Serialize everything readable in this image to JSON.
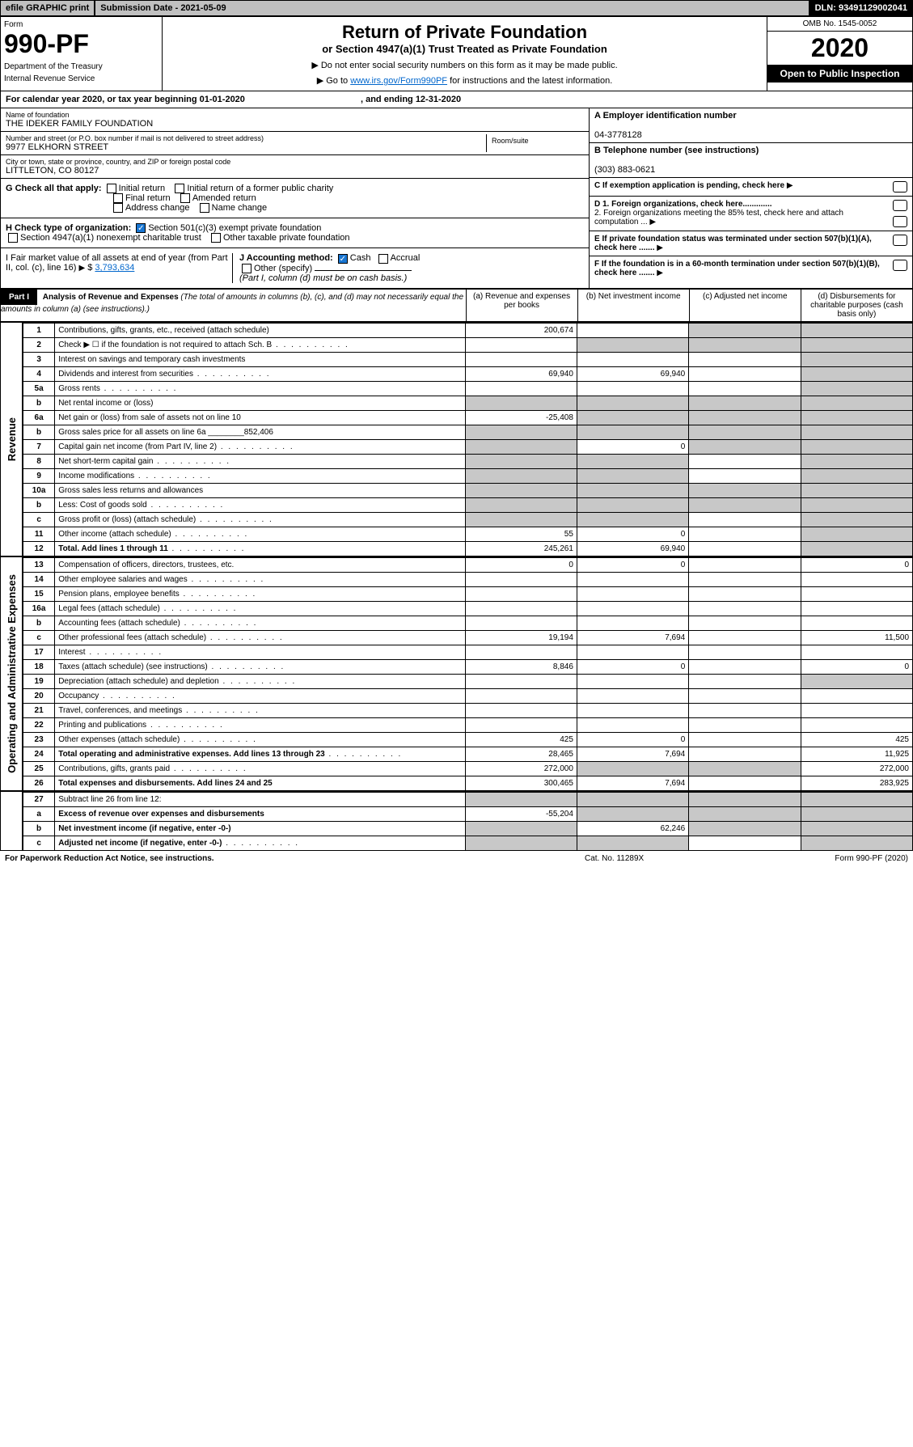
{
  "topbar": {
    "efile": "efile GRAPHIC print",
    "submission": "Submission Date - 2021-05-09",
    "dln": "DLN: 93491129002041"
  },
  "header": {
    "form_word": "Form",
    "form_num": "990-PF",
    "dept": "Department of the Treasury",
    "irs": "Internal Revenue Service",
    "title": "Return of Private Foundation",
    "subtitle": "or Section 4947(a)(1) Trust Treated as Private Foundation",
    "note1": "▶ Do not enter social security numbers on this form as it may be made public.",
    "note2_pre": "▶ Go to ",
    "note2_link": "www.irs.gov/Form990PF",
    "note2_post": " for instructions and the latest information.",
    "omb": "OMB No. 1545-0052",
    "year": "2020",
    "open": "Open to Public Inspection"
  },
  "cal": {
    "text_a": "For calendar year 2020, or tax year beginning 01-01-2020",
    "text_b": ", and ending 12-31-2020"
  },
  "id": {
    "name_label": "Name of foundation",
    "name": "THE IDEKER FAMILY FOUNDATION",
    "addr_label": "Number and street (or P.O. box number if mail is not delivered to street address)",
    "addr": "9977 ELKHORN STREET",
    "room_label": "Room/suite",
    "city_label": "City or town, state or province, country, and ZIP or foreign postal code",
    "city": "LITTLETON, CO  80127",
    "ein_label": "A Employer identification number",
    "ein": "04-3778128",
    "tel_label": "B Telephone number (see instructions)",
    "tel": "(303) 883-0621",
    "c_label": "C If exemption application is pending, check here",
    "d1": "D 1. Foreign organizations, check here.............",
    "d2": "2. Foreign organizations meeting the 85% test, check here and attach computation ...",
    "e": "E If private foundation status was terminated under section 507(b)(1)(A), check here .......",
    "f": "F If the foundation is in a 60-month termination under section 507(b)(1)(B), check here ......."
  },
  "checks": {
    "g_label": "G Check all that apply:",
    "g1": "Initial return",
    "g2": "Initial return of a former public charity",
    "g3": "Final return",
    "g4": "Amended return",
    "g5": "Address change",
    "g6": "Name change",
    "h_label": "H Check type of organization:",
    "h1": "Section 501(c)(3) exempt private foundation",
    "h2": "Section 4947(a)(1) nonexempt charitable trust",
    "h3": "Other taxable private foundation",
    "i_label": "I Fair market value of all assets at end of year (from Part II, col. (c), line 16)",
    "i_val": "3,793,634",
    "j_label": "J Accounting method:",
    "j1": "Cash",
    "j2": "Accrual",
    "j3": "Other (specify)",
    "j_note": "(Part I, column (d) must be on cash basis.)"
  },
  "part1": {
    "label": "Part I",
    "title": "Analysis of Revenue and Expenses",
    "title_note": "(The total of amounts in columns (b), (c), and (d) may not necessarily equal the amounts in column (a) (see instructions).)",
    "col_a": "(a) Revenue and expenses per books",
    "col_b": "(b) Net investment income",
    "col_c": "(c) Adjusted net income",
    "col_d": "(d) Disbursements for charitable purposes (cash basis only)"
  },
  "side_rev": "Revenue",
  "side_exp": "Operating and Administrative Expenses",
  "rows": [
    {
      "n": "1",
      "d": "Contributions, gifts, grants, etc., received (attach schedule)",
      "a": "200,674",
      "b": "",
      "c": "s",
      "dd": "s"
    },
    {
      "n": "2",
      "d": "Check ▶ ☐ if the foundation is not required to attach Sch. B",
      "a": "",
      "b": "s",
      "c": "s",
      "dd": "s",
      "dots": 1
    },
    {
      "n": "3",
      "d": "Interest on savings and temporary cash investments",
      "a": "",
      "b": "",
      "c": "",
      "dd": "s"
    },
    {
      "n": "4",
      "d": "Dividends and interest from securities",
      "a": "69,940",
      "b": "69,940",
      "c": "",
      "dd": "s",
      "dots": 1
    },
    {
      "n": "5a",
      "d": "Gross rents",
      "a": "",
      "b": "",
      "c": "",
      "dd": "s",
      "dots": 1
    },
    {
      "n": "b",
      "d": "Net rental income or (loss)",
      "a": "s",
      "b": "s",
      "c": "s",
      "dd": "s",
      "line": 1
    },
    {
      "n": "6a",
      "d": "Net gain or (loss) from sale of assets not on line 10",
      "a": "-25,408",
      "b": "s",
      "c": "s",
      "dd": "s"
    },
    {
      "n": "b",
      "d": "Gross sales price for all assets on line 6a ________852,406",
      "a": "s",
      "b": "s",
      "c": "s",
      "dd": "s"
    },
    {
      "n": "7",
      "d": "Capital gain net income (from Part IV, line 2)",
      "a": "s",
      "b": "0",
      "c": "s",
      "dd": "s",
      "dots": 1
    },
    {
      "n": "8",
      "d": "Net short-term capital gain",
      "a": "s",
      "b": "s",
      "c": "",
      "dd": "s",
      "dots": 1
    },
    {
      "n": "9",
      "d": "Income modifications",
      "a": "s",
      "b": "s",
      "c": "",
      "dd": "s",
      "dots": 1
    },
    {
      "n": "10a",
      "d": "Gross sales less returns and allowances",
      "a": "s",
      "b": "s",
      "c": "s",
      "dd": "s",
      "line": 1
    },
    {
      "n": "b",
      "d": "Less: Cost of goods sold",
      "a": "s",
      "b": "s",
      "c": "s",
      "dd": "s",
      "dots": 1,
      "line": 1
    },
    {
      "n": "c",
      "d": "Gross profit or (loss) (attach schedule)",
      "a": "s",
      "b": "s",
      "c": "",
      "dd": "s",
      "dots": 1
    },
    {
      "n": "11",
      "d": "Other income (attach schedule)",
      "a": "55",
      "b": "0",
      "c": "",
      "dd": "s",
      "dots": 1
    },
    {
      "n": "12",
      "d": "Total. Add lines 1 through 11",
      "a": "245,261",
      "b": "69,940",
      "c": "",
      "dd": "s",
      "dots": 1,
      "bold": 1
    }
  ],
  "rows2": [
    {
      "n": "13",
      "d": "Compensation of officers, directors, trustees, etc.",
      "a": "0",
      "b": "0",
      "c": "",
      "dd": "0"
    },
    {
      "n": "14",
      "d": "Other employee salaries and wages",
      "a": "",
      "b": "",
      "c": "",
      "dd": "",
      "dots": 1
    },
    {
      "n": "15",
      "d": "Pension plans, employee benefits",
      "a": "",
      "b": "",
      "c": "",
      "dd": "",
      "dots": 1
    },
    {
      "n": "16a",
      "d": "Legal fees (attach schedule)",
      "a": "",
      "b": "",
      "c": "",
      "dd": "",
      "dots": 1
    },
    {
      "n": "b",
      "d": "Accounting fees (attach schedule)",
      "a": "",
      "b": "",
      "c": "",
      "dd": "",
      "dots": 1
    },
    {
      "n": "c",
      "d": "Other professional fees (attach schedule)",
      "a": "19,194",
      "b": "7,694",
      "c": "",
      "dd": "11,500",
      "dots": 1
    },
    {
      "n": "17",
      "d": "Interest",
      "a": "",
      "b": "",
      "c": "",
      "dd": "",
      "dots": 1
    },
    {
      "n": "18",
      "d": "Taxes (attach schedule) (see instructions)",
      "a": "8,846",
      "b": "0",
      "c": "",
      "dd": "0",
      "dots": 1
    },
    {
      "n": "19",
      "d": "Depreciation (attach schedule) and depletion",
      "a": "",
      "b": "",
      "c": "",
      "dd": "s",
      "dots": 1
    },
    {
      "n": "20",
      "d": "Occupancy",
      "a": "",
      "b": "",
      "c": "",
      "dd": "",
      "dots": 1
    },
    {
      "n": "21",
      "d": "Travel, conferences, and meetings",
      "a": "",
      "b": "",
      "c": "",
      "dd": "",
      "dots": 1
    },
    {
      "n": "22",
      "d": "Printing and publications",
      "a": "",
      "b": "",
      "c": "",
      "dd": "",
      "dots": 1
    },
    {
      "n": "23",
      "d": "Other expenses (attach schedule)",
      "a": "425",
      "b": "0",
      "c": "",
      "dd": "425",
      "dots": 1
    },
    {
      "n": "24",
      "d": "Total operating and administrative expenses. Add lines 13 through 23",
      "a": "28,465",
      "b": "7,694",
      "c": "",
      "dd": "11,925",
      "dots": 1,
      "bold": 1
    },
    {
      "n": "25",
      "d": "Contributions, gifts, grants paid",
      "a": "272,000",
      "b": "s",
      "c": "s",
      "dd": "272,000",
      "dots": 1
    },
    {
      "n": "26",
      "d": "Total expenses and disbursements. Add lines 24 and 25",
      "a": "300,465",
      "b": "7,694",
      "c": "",
      "dd": "283,925",
      "bold": 1
    }
  ],
  "rows3": [
    {
      "n": "27",
      "d": "Subtract line 26 from line 12:",
      "a": "s",
      "b": "s",
      "c": "s",
      "dd": "s"
    },
    {
      "n": "a",
      "d": "Excess of revenue over expenses and disbursements",
      "a": "-55,204",
      "b": "s",
      "c": "s",
      "dd": "s",
      "bold": 1
    },
    {
      "n": "b",
      "d": "Net investment income (if negative, enter -0-)",
      "a": "s",
      "b": "62,246",
      "c": "s",
      "dd": "s",
      "bold": 1
    },
    {
      "n": "c",
      "d": "Adjusted net income (if negative, enter -0-)",
      "a": "s",
      "b": "s",
      "c": "",
      "dd": "s",
      "bold": 1,
      "dots": 1
    }
  ],
  "footer": {
    "l": "For Paperwork Reduction Act Notice, see instructions.",
    "m": "Cat. No. 11289X",
    "r": "Form 990-PF (2020)"
  }
}
